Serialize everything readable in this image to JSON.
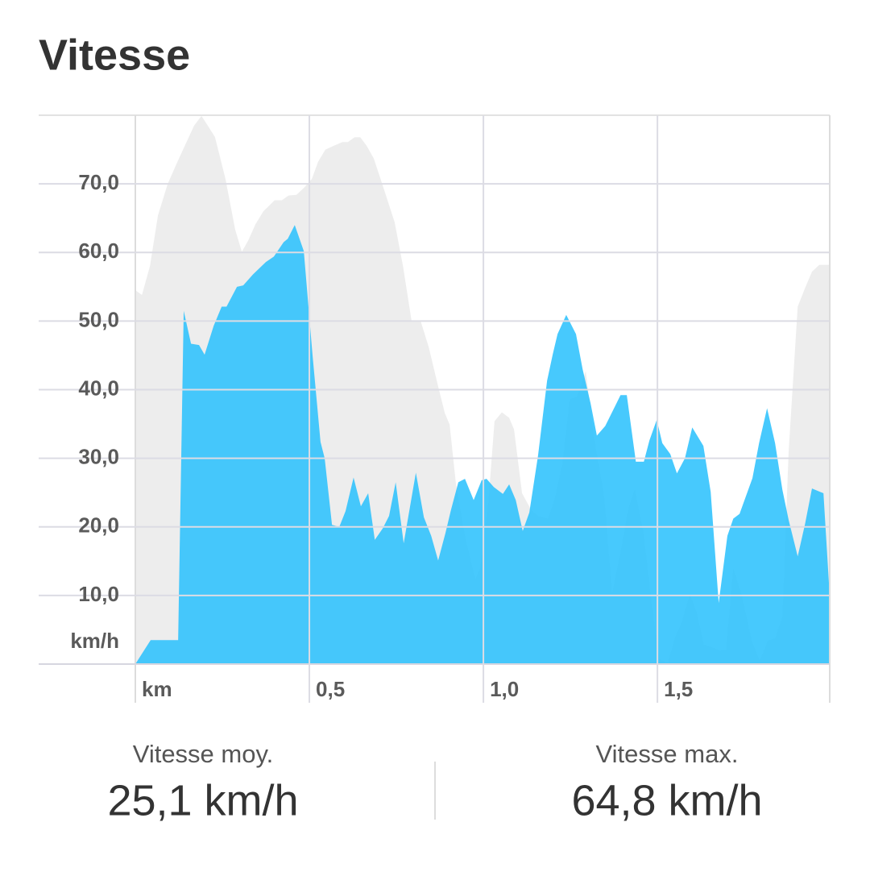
{
  "chart_data": {
    "type": "area",
    "title": "Vitesse",
    "x_label": "km",
    "y_label": "km/h",
    "xlim": [
      0,
      1.995
    ],
    "ylim": [
      0,
      80
    ],
    "xticks": [
      {
        "value": 0.5,
        "label": "0,5"
      },
      {
        "value": 1.0,
        "label": "1,0"
      },
      {
        "value": 1.5,
        "label": "1,5"
      }
    ],
    "yticks": [
      {
        "value": 10,
        "label": "10,0"
      },
      {
        "value": 20,
        "label": "20,0"
      },
      {
        "value": 30,
        "label": "30,0"
      },
      {
        "value": 40,
        "label": "40,0"
      },
      {
        "value": 50,
        "label": "50,0"
      },
      {
        "value": 60,
        "label": "60,0"
      },
      {
        "value": 70,
        "label": "70,0"
      }
    ],
    "grid": true,
    "series": [
      {
        "color": "#e9e9e9",
        "x": [
          0,
          0.019,
          0.042,
          0.065,
          0.093,
          0.12,
          0.148,
          0.169,
          0.19,
          0.208,
          0.229,
          0.259,
          0.287,
          0.306,
          0.324,
          0.345,
          0.368,
          0.4,
          0.421,
          0.44,
          0.463,
          0.486,
          0.507,
          0.525,
          0.546,
          0.572,
          0.595,
          0.611,
          0.63,
          0.646,
          0.664,
          0.685,
          0.715,
          0.745,
          0.769,
          0.794,
          0.819,
          0.843,
          0.866,
          0.889,
          0.903,
          0.921,
          0.947,
          0.977,
          0.991,
          1.014,
          1.032,
          1.053,
          1.074,
          1.088,
          1.111,
          1.137,
          1.157,
          1.185,
          1.204,
          1.227,
          1.248,
          1.269,
          1.294,
          1.317,
          1.347,
          1.37,
          1.396,
          1.417,
          1.435,
          1.461,
          1.481,
          1.505,
          1.53,
          1.551,
          1.569,
          1.593,
          1.613,
          1.634,
          1.655,
          1.678,
          1.697,
          1.718,
          1.743,
          1.771,
          1.794,
          1.817,
          1.838,
          1.859,
          1.877,
          1.903,
          1.924,
          1.944,
          1.965,
          1.995
        ],
        "values": [
          54.5,
          53.8,
          58.0,
          65.4,
          70.0,
          73.1,
          76.2,
          78.5,
          79.9,
          78.5,
          76.8,
          70.7,
          63.3,
          60.1,
          61.7,
          64.1,
          66.0,
          67.6,
          67.6,
          68.3,
          68.4,
          69.5,
          70.7,
          73.2,
          75.0,
          75.6,
          76.1,
          76.1,
          76.8,
          76.8,
          75.6,
          73.7,
          69.1,
          64.4,
          58.0,
          49.9,
          50.1,
          46.2,
          41.3,
          36.6,
          34.9,
          26.3,
          18.7,
          12.4,
          14.0,
          23.5,
          35.4,
          36.7,
          35.9,
          34.2,
          24.9,
          22.5,
          21.6,
          21.2,
          23.9,
          29.3,
          38.6,
          39.0,
          42.7,
          33.3,
          24.5,
          10.4,
          16.9,
          22.8,
          25.5,
          18.9,
          9.9,
          0.7,
          0.2,
          4.0,
          6.0,
          10.2,
          7.5,
          2.8,
          2.5,
          2.0,
          2.1,
          14.0,
          9.9,
          3.4,
          0.5,
          3.4,
          3.8,
          6.9,
          31.0,
          52.1,
          54.8,
          57.2,
          58.2,
          58.2
        ]
      },
      {
        "color": "#2ec2fd",
        "x": [
          0,
          0.044,
          0.123,
          0.139,
          0.16,
          0.183,
          0.199,
          0.225,
          0.248,
          0.262,
          0.292,
          0.31,
          0.338,
          0.375,
          0.398,
          0.426,
          0.438,
          0.458,
          0.484,
          0.509,
          0.532,
          0.544,
          0.565,
          0.586,
          0.604,
          0.627,
          0.648,
          0.669,
          0.688,
          0.711,
          0.729,
          0.748,
          0.771,
          0.806,
          0.829,
          0.85,
          0.87,
          0.891,
          0.907,
          0.928,
          0.947,
          0.972,
          0.995,
          1.009,
          1.03,
          1.056,
          1.074,
          1.093,
          1.113,
          1.132,
          1.157,
          1.183,
          1.199,
          1.213,
          1.238,
          1.266,
          1.285,
          1.308,
          1.326,
          1.35,
          1.394,
          1.412,
          1.438,
          1.461,
          1.477,
          1.498,
          1.514,
          1.537,
          1.556,
          1.579,
          1.6,
          1.632,
          1.653,
          1.676,
          1.701,
          1.718,
          1.736,
          1.773,
          1.792,
          1.815,
          1.838,
          1.859,
          1.877,
          1.903,
          1.924,
          1.944,
          1.977,
          1.995
        ],
        "values": [
          0,
          3.5,
          3.5,
          51.5,
          46.7,
          46.5,
          45.1,
          49.3,
          52.1,
          52.1,
          55.0,
          55.2,
          56.8,
          58.6,
          59.4,
          61.5,
          62.0,
          64.0,
          60.2,
          45.1,
          32.4,
          30.0,
          20.3,
          20.0,
          22.3,
          27.2,
          23.0,
          24.9,
          18.1,
          19.8,
          21.6,
          26.5,
          17.6,
          27.9,
          21.4,
          18.7,
          15.1,
          19.1,
          22.5,
          26.5,
          27.0,
          23.9,
          26.8,
          27.0,
          25.8,
          24.8,
          26.2,
          23.9,
          19.4,
          22.1,
          30.4,
          41.3,
          45.1,
          48.1,
          50.9,
          48.1,
          43.0,
          38.0,
          33.3,
          34.7,
          39.2,
          39.2,
          29.5,
          29.5,
          32.6,
          35.6,
          32.2,
          30.6,
          27.8,
          30.0,
          34.5,
          31.8,
          25.1,
          8.9,
          18.7,
          21.2,
          21.9,
          27.1,
          32.2,
          37.3,
          32.2,
          25.4,
          21.0,
          15.7,
          20.4,
          25.6,
          24.9,
          9.9
        ]
      }
    ]
  },
  "stats": [
    {
      "label": "Vitesse moy.",
      "value": "25,1 km/h"
    },
    {
      "label": "Vitesse max.",
      "value": "64,8 km/h"
    }
  ]
}
